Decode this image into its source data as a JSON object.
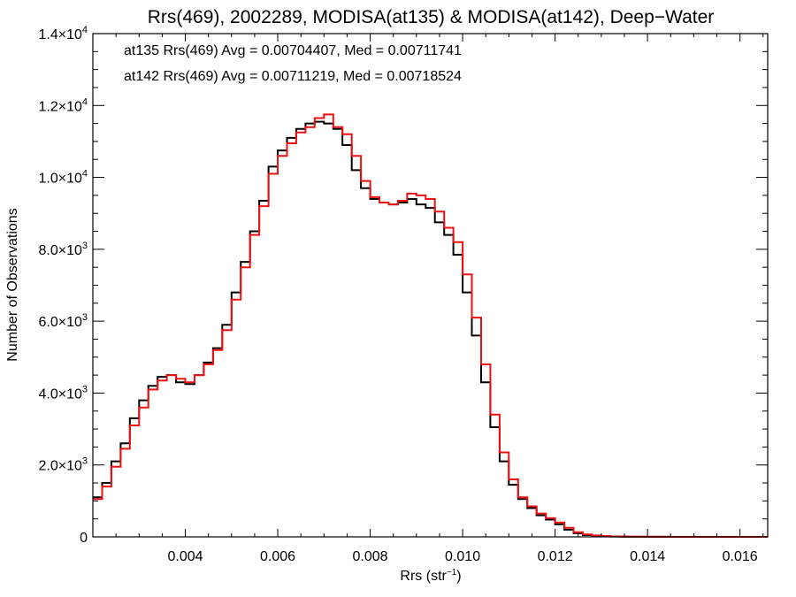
{
  "chart_data": {
    "type": "line",
    "title": "Rrs(469), 2002289, MODISA(at135) & MODISA(at142), Deep−Water",
    "xlabel": "Rrs (str",
    "xlabel_sup": "−1",
    "xlabel_suffix": ")",
    "ylabel": "Number of Observations",
    "xlim": [
      0.002,
      0.0166
    ],
    "ylim": [
      0,
      14000
    ],
    "x_ticks": [
      {
        "value": 0.004,
        "label": "0.004"
      },
      {
        "value": 0.006,
        "label": "0.006"
      },
      {
        "value": 0.008,
        "label": "0.008"
      },
      {
        "value": 0.01,
        "label": "0.010"
      },
      {
        "value": 0.012,
        "label": "0.012"
      },
      {
        "value": 0.014,
        "label": "0.014"
      },
      {
        "value": 0.016,
        "label": "0.016"
      }
    ],
    "y_ticks": [
      {
        "value": 0,
        "mant": "0",
        "exp": ""
      },
      {
        "value": 2000,
        "mant": "2.0×10",
        "exp": "3"
      },
      {
        "value": 4000,
        "mant": "4.0×10",
        "exp": "3"
      },
      {
        "value": 6000,
        "mant": "6.0×10",
        "exp": "3"
      },
      {
        "value": 8000,
        "mant": "8.0×10",
        "exp": "3"
      },
      {
        "value": 10000,
        "mant": "1.0×10",
        "exp": "4"
      },
      {
        "value": 12000,
        "mant": "1.2×10",
        "exp": "4"
      },
      {
        "value": 14000,
        "mant": "1.4×10",
        "exp": "4"
      }
    ],
    "annotations": [
      {
        "text": "at135 Rrs(469) Avg = 0.00704407, Med = 0.00711741",
        "color": "#000000"
      },
      {
        "text": "at142 Rrs(469) Avg = 0.00711219, Med = 0.00718524",
        "color": "#ee1111"
      }
    ],
    "grid": false,
    "series": [
      {
        "color": "#000000",
        "x": [
          0.002,
          0.0022,
          0.0024,
          0.0026,
          0.0028,
          0.003,
          0.0032,
          0.0034,
          0.0036,
          0.0038,
          0.004,
          0.0042,
          0.0044,
          0.0046,
          0.0048,
          0.005,
          0.0052,
          0.0054,
          0.0056,
          0.0058,
          0.006,
          0.0062,
          0.0064,
          0.0066,
          0.0068,
          0.007,
          0.0072,
          0.0074,
          0.0076,
          0.0078,
          0.008,
          0.0082,
          0.0084,
          0.0086,
          0.0088,
          0.009,
          0.0092,
          0.0094,
          0.0096,
          0.0098,
          0.01,
          0.0102,
          0.0104,
          0.0106,
          0.0108,
          0.011,
          0.0112,
          0.0114,
          0.0116,
          0.0118,
          0.012,
          0.0122,
          0.0124,
          0.0126,
          0.0128,
          0.013,
          0.0132,
          0.0134,
          0.0136,
          0.014,
          0.0145,
          0.015,
          0.0155,
          0.016,
          0.0166
        ],
        "values": [
          1100,
          1500,
          2100,
          2600,
          3300,
          3800,
          4200,
          4450,
          4500,
          4300,
          4250,
          4500,
          4850,
          5250,
          5900,
          6800,
          7650,
          8500,
          9350,
          10300,
          10750,
          11100,
          11350,
          11500,
          11550,
          11500,
          11350,
          10900,
          10200,
          9700,
          9400,
          9300,
          9250,
          9300,
          9400,
          9250,
          9150,
          8750,
          8400,
          7850,
          6800,
          5600,
          4300,
          3050,
          2100,
          1450,
          1050,
          800,
          600,
          480,
          350,
          200,
          100,
          50,
          30,
          20,
          10,
          5,
          3,
          2,
          1,
          0,
          0,
          0,
          0
        ]
      },
      {
        "color": "#ee1111",
        "x": [
          0.002,
          0.0022,
          0.0024,
          0.0026,
          0.0028,
          0.003,
          0.0032,
          0.0034,
          0.0036,
          0.0038,
          0.004,
          0.0042,
          0.0044,
          0.0046,
          0.0048,
          0.005,
          0.0052,
          0.0054,
          0.0056,
          0.0058,
          0.006,
          0.0062,
          0.0064,
          0.0066,
          0.0068,
          0.007,
          0.0072,
          0.0074,
          0.0076,
          0.0078,
          0.008,
          0.0082,
          0.0084,
          0.0086,
          0.0088,
          0.009,
          0.0092,
          0.0094,
          0.0096,
          0.0098,
          0.01,
          0.0102,
          0.0104,
          0.0106,
          0.0108,
          0.011,
          0.0112,
          0.0114,
          0.0116,
          0.0118,
          0.012,
          0.0122,
          0.0124,
          0.0126,
          0.0128,
          0.013,
          0.0132,
          0.0134,
          0.0136,
          0.014,
          0.0145,
          0.015,
          0.0155,
          0.016,
          0.0166
        ],
        "values": [
          1050,
          1400,
          1950,
          2450,
          3100,
          3600,
          4100,
          4350,
          4500,
          4400,
          4300,
          4500,
          4800,
          5200,
          5750,
          6600,
          7500,
          8400,
          9200,
          10100,
          10600,
          10950,
          11250,
          11400,
          11650,
          11750,
          11400,
          11200,
          10600,
          9900,
          9450,
          9300,
          9250,
          9350,
          9550,
          9500,
          9400,
          9050,
          8600,
          8200,
          7300,
          6100,
          4800,
          3400,
          2350,
          1600,
          1100,
          850,
          650,
          520,
          400,
          250,
          130,
          70,
          40,
          25,
          12,
          6,
          4,
          2,
          1,
          0,
          0,
          0,
          0
        ]
      }
    ]
  }
}
